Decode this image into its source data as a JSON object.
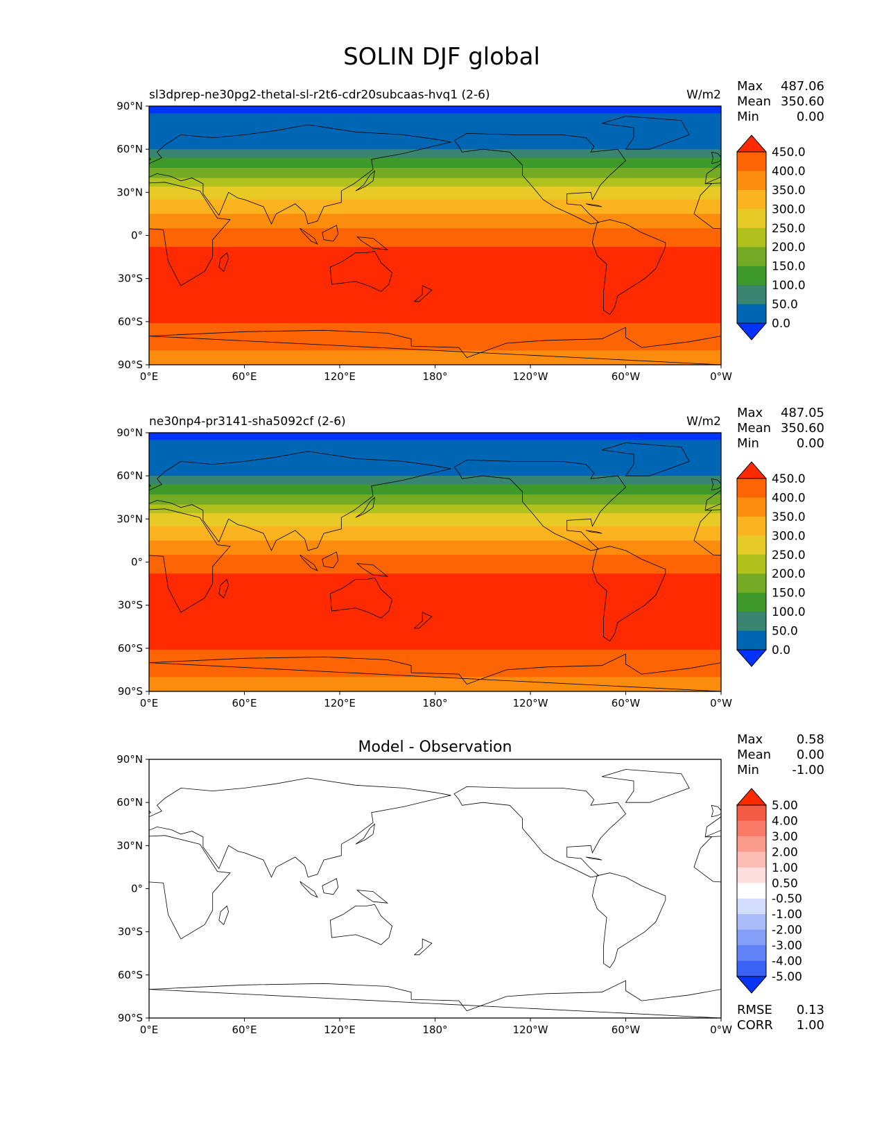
{
  "title": "SOLIN DJF global",
  "panels": [
    {
      "id": "test",
      "left_title": "sl3dprep-ne30pg2-thetal-sl-r2t6-cdr20subcaas-hvq1 (2-6)",
      "center_title": "",
      "units": "W/m2",
      "stats": [
        {
          "label": "Max",
          "value": "487.06"
        },
        {
          "label": "Mean",
          "value": "350.60"
        },
        {
          "label": "Min",
          "value": "0.00"
        }
      ],
      "colorbar": {
        "colors": [
          "#0033ff",
          "#0066b3",
          "#3a8570",
          "#3d9a2a",
          "#75ab24",
          "#b1c21e",
          "#e8ca26",
          "#fbb31f",
          "#fc8c0d",
          "#fd6404",
          "#ff2a00"
        ],
        "labels": [
          "0.0",
          "50.0",
          "100.0",
          "150.0",
          "200.0",
          "250.0",
          "300.0",
          "350.0",
          "400.0",
          "450.0"
        ]
      },
      "bands": [
        {
          "lat_top": 90,
          "lat_bottom": 85,
          "level": 0
        },
        {
          "lat_top": 85,
          "lat_bottom": 60,
          "level": 1
        },
        {
          "lat_top": 60,
          "lat_bottom": 54,
          "level": 2
        },
        {
          "lat_top": 54,
          "lat_bottom": 47,
          "level": 3
        },
        {
          "lat_top": 47,
          "lat_bottom": 40,
          "level": 4
        },
        {
          "lat_top": 40,
          "lat_bottom": 34,
          "level": 5
        },
        {
          "lat_top": 34,
          "lat_bottom": 25,
          "level": 6
        },
        {
          "lat_top": 25,
          "lat_bottom": 15,
          "level": 7
        },
        {
          "lat_top": 15,
          "lat_bottom": 5,
          "level": 8
        },
        {
          "lat_top": 5,
          "lat_bottom": -8,
          "level": 9
        },
        {
          "lat_top": -8,
          "lat_bottom": -61,
          "level": 10
        },
        {
          "lat_top": -61,
          "lat_bottom": -80,
          "level": 9
        },
        {
          "lat_top": -80,
          "lat_bottom": -90,
          "level": 8
        }
      ]
    },
    {
      "id": "reference",
      "left_title": "ne30np4-pr3141-sha5092cf (2-6)",
      "center_title": "",
      "units": "W/m2",
      "stats": [
        {
          "label": "Max",
          "value": "487.05"
        },
        {
          "label": "Mean",
          "value": "350.60"
        },
        {
          "label": "Min",
          "value": "0.00"
        }
      ],
      "colorbar": {
        "colors": [
          "#0033ff",
          "#0066b3",
          "#3a8570",
          "#3d9a2a",
          "#75ab24",
          "#b1c21e",
          "#e8ca26",
          "#fbb31f",
          "#fc8c0d",
          "#fd6404",
          "#ff2a00"
        ],
        "labels": [
          "0.0",
          "50.0",
          "100.0",
          "150.0",
          "200.0",
          "250.0",
          "300.0",
          "350.0",
          "400.0",
          "450.0"
        ]
      },
      "bands": [
        {
          "lat_top": 90,
          "lat_bottom": 85,
          "level": 0
        },
        {
          "lat_top": 85,
          "lat_bottom": 60,
          "level": 1
        },
        {
          "lat_top": 60,
          "lat_bottom": 54,
          "level": 2
        },
        {
          "lat_top": 54,
          "lat_bottom": 47,
          "level": 3
        },
        {
          "lat_top": 47,
          "lat_bottom": 40,
          "level": 4
        },
        {
          "lat_top": 40,
          "lat_bottom": 34,
          "level": 5
        },
        {
          "lat_top": 34,
          "lat_bottom": 25,
          "level": 6
        },
        {
          "lat_top": 25,
          "lat_bottom": 15,
          "level": 7
        },
        {
          "lat_top": 15,
          "lat_bottom": 5,
          "level": 8
        },
        {
          "lat_top": 5,
          "lat_bottom": -8,
          "level": 9
        },
        {
          "lat_top": -8,
          "lat_bottom": -61,
          "level": 10
        },
        {
          "lat_top": -61,
          "lat_bottom": -80,
          "level": 9
        },
        {
          "lat_top": -80,
          "lat_bottom": -90,
          "level": 8
        }
      ]
    },
    {
      "id": "difference",
      "left_title": "",
      "center_title": "Model - Observation",
      "units": "",
      "stats": [
        {
          "label": "Max",
          "value": "0.58"
        },
        {
          "label": "Mean",
          "value": "0.00"
        },
        {
          "label": "Min",
          "value": "-1.00"
        }
      ],
      "extra_stats": [
        {
          "label": "RMSE",
          "value": "0.13"
        },
        {
          "label": "CORR",
          "value": "1.00"
        }
      ],
      "colorbar": {
        "colors": [
          "#0a34f5",
          "#3a63f5",
          "#5f82f6",
          "#849ff7",
          "#aabcf9",
          "#d2dcfb",
          "#ffffff",
          "#ffdede",
          "#fdbcb4",
          "#fb9b8c",
          "#f97a66",
          "#f55a45",
          "#ff2a00"
        ],
        "labels": [
          "-5.00",
          "-4.00",
          "-3.00",
          "-2.00",
          "-1.00",
          "-0.50",
          "0.50",
          "1.00",
          "2.00",
          "3.00",
          "4.00",
          "5.00"
        ]
      },
      "bands": [
        {
          "lat_top": 90,
          "lat_bottom": -90,
          "level": 6
        }
      ]
    }
  ],
  "axes": {
    "lat_labels": [
      "90°N",
      "60°N",
      "30°N",
      "0°",
      "30°S",
      "60°S",
      "90°S"
    ],
    "lon_labels": [
      "0°E",
      "60°E",
      "120°E",
      "180°",
      "120°W",
      "60°W",
      "0°W"
    ]
  }
}
